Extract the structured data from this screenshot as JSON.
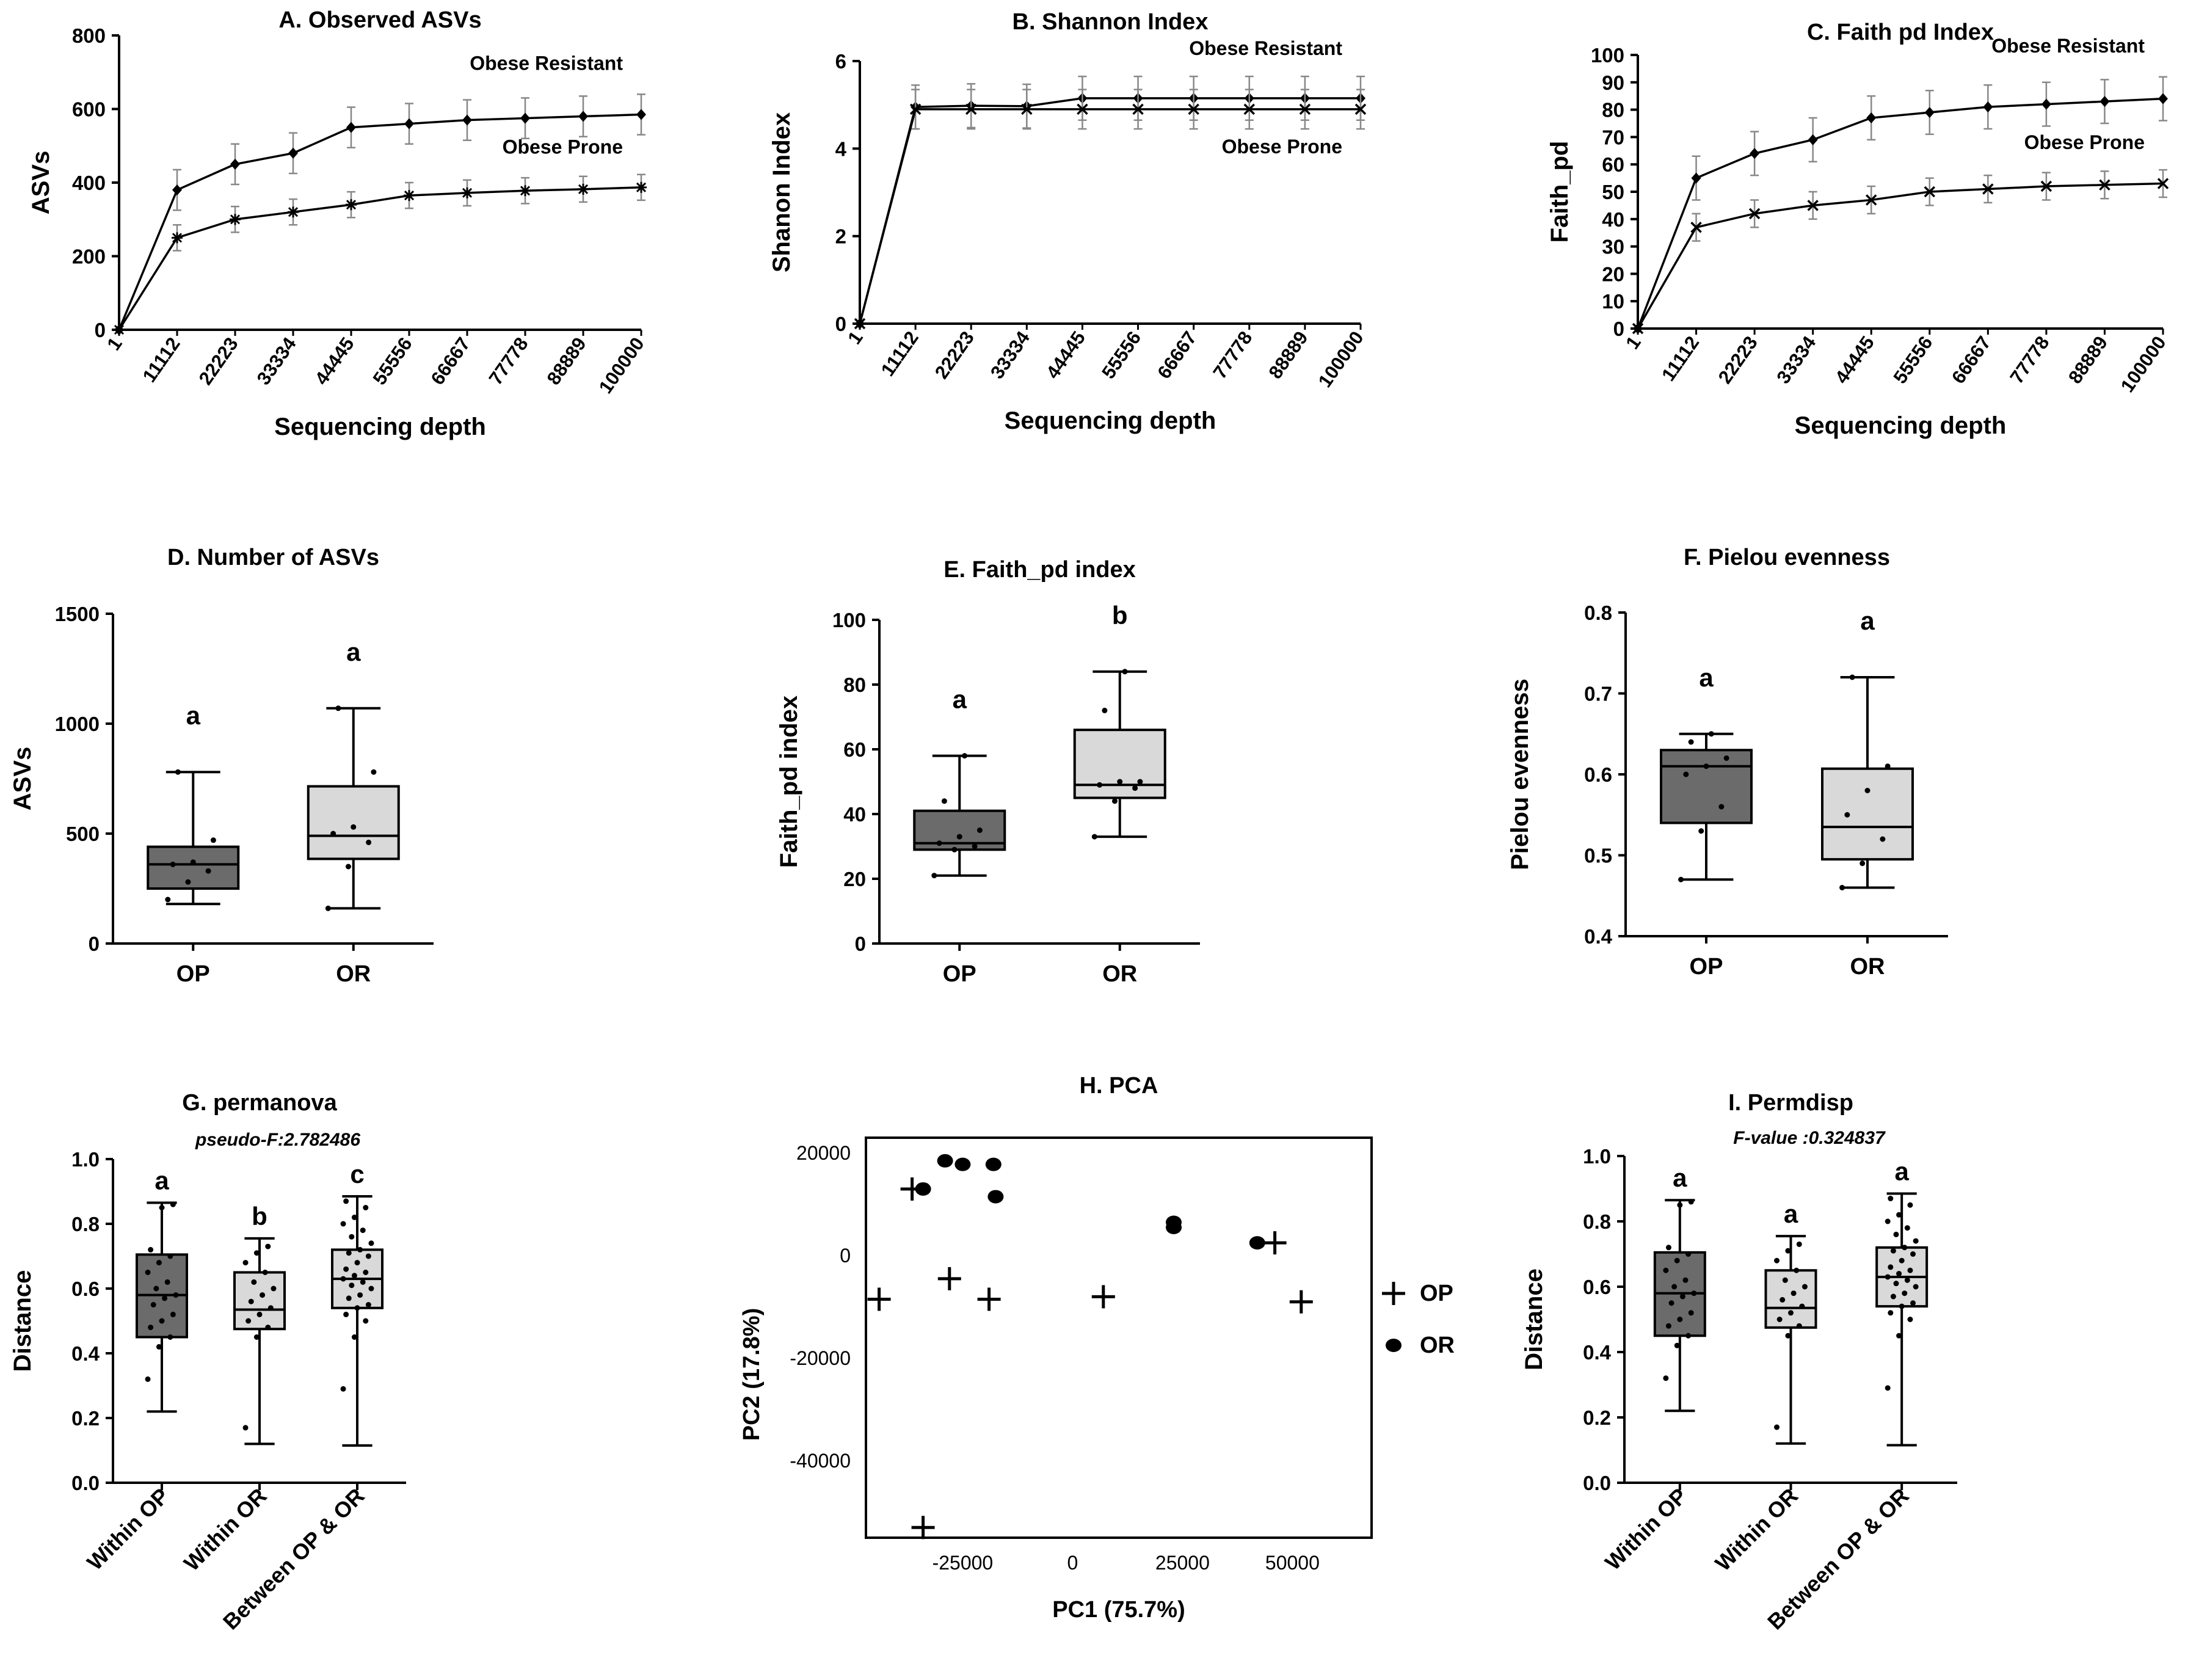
{
  "colors": {
    "box_op": "#6b6b6b",
    "box_or": "#d9d9d9",
    "line": "#000000",
    "errorbar": "#888888"
  },
  "chart_data": [
    {
      "id": "A",
      "type": "line",
      "title": "A. Observed ASVs",
      "xlabel": "Sequencing depth",
      "ylabel": "ASVs",
      "x": [
        "1",
        "11112",
        "22223",
        "33334",
        "44445",
        "55556",
        "66667",
        "77778",
        "88889",
        "100000"
      ],
      "ylim": [
        0,
        800
      ],
      "yticks": [
        "0",
        "200",
        "400",
        "600",
        "800"
      ],
      "series": [
        {
          "name": "Obese Resistant",
          "marker": "diamond",
          "values": [
            0,
            380,
            450,
            480,
            550,
            560,
            570,
            575,
            580,
            585
          ],
          "err": [
            0,
            55,
            55,
            55,
            55,
            55,
            55,
            55,
            55,
            55
          ]
        },
        {
          "name": "Obese Prone",
          "marker": "star",
          "values": [
            0,
            250,
            300,
            320,
            340,
            365,
            372,
            378,
            382,
            387
          ],
          "err": [
            0,
            35,
            35,
            35,
            35,
            35,
            35,
            35,
            35,
            35
          ]
        }
      ]
    },
    {
      "id": "B",
      "type": "line",
      "title": "B. Shannon Index",
      "xlabel": "Sequencing depth",
      "ylabel": "Shanon Index",
      "x": [
        "1",
        "11112",
        "22223",
        "33334",
        "44445",
        "55556",
        "66667",
        "77778",
        "88889",
        "100000"
      ],
      "ylim": [
        0,
        6
      ],
      "yticks": [
        "0",
        "2",
        "4",
        "6"
      ],
      "series": [
        {
          "name": "Obese Resistant",
          "marker": "diamond",
          "values": [
            0,
            4.95,
            4.98,
            4.97,
            5.15,
            5.15,
            5.15,
            5.15,
            5.15,
            5.15
          ],
          "err": [
            0,
            0.5,
            0.5,
            0.5,
            0.5,
            0.5,
            0.5,
            0.5,
            0.5,
            0.5
          ]
        },
        {
          "name": "Obese Prone",
          "marker": "x",
          "values": [
            0,
            4.9,
            4.9,
            4.9,
            4.9,
            4.9,
            4.9,
            4.9,
            4.9,
            4.9
          ],
          "err": [
            0,
            0.45,
            0.45,
            0.45,
            0.45,
            0.45,
            0.45,
            0.45,
            0.45,
            0.45
          ]
        }
      ]
    },
    {
      "id": "C",
      "type": "line",
      "title": "C. Faith pd Index",
      "xlabel": "Sequencing depth",
      "ylabel": "Faith_pd",
      "x": [
        "1",
        "11112",
        "22223",
        "33334",
        "44445",
        "55556",
        "66667",
        "77778",
        "88889",
        "100000"
      ],
      "ylim": [
        0,
        100
      ],
      "yticks": [
        "0",
        "10",
        "20",
        "30",
        "40",
        "50",
        "60",
        "70",
        "80",
        "90",
        "100"
      ],
      "series": [
        {
          "name": "Obese Resistant",
          "marker": "diamond",
          "values": [
            0,
            55,
            64,
            69,
            77,
            79,
            81,
            82,
            83,
            84
          ],
          "err": [
            0,
            8,
            8,
            8,
            8,
            8,
            8,
            8,
            8,
            8
          ]
        },
        {
          "name": "Obese Prone",
          "marker": "x",
          "values": [
            0,
            37,
            42,
            45,
            47,
            50,
            51,
            52,
            52.5,
            53
          ],
          "err": [
            0,
            5,
            5,
            5,
            5,
            5,
            5,
            5,
            5,
            5
          ]
        }
      ]
    },
    {
      "id": "D",
      "type": "box",
      "title": "D. Number of ASVs",
      "ylabel": "ASVs",
      "categories": [
        "OP",
        "OR"
      ],
      "ylim": [
        0,
        1500
      ],
      "yticks": [
        "0",
        "500",
        "1000",
        "1500"
      ],
      "groups": [
        {
          "min": 180,
          "q1": 250,
          "median": 360,
          "q3": 440,
          "max": 780,
          "letter": "a",
          "fill": "op",
          "points": [
            200,
            280,
            330,
            360,
            370,
            470,
            780
          ]
        },
        {
          "min": 160,
          "q1": 385,
          "median": 490,
          "q3": 715,
          "max": 1070,
          "letter": "a",
          "fill": "or",
          "points": [
            160,
            350,
            460,
            500,
            530,
            780,
            1070
          ]
        }
      ]
    },
    {
      "id": "E",
      "type": "box",
      "title": "E. Faith_pd index",
      "ylabel": "Faith_pd index",
      "categories": [
        "OP",
        "OR"
      ],
      "ylim": [
        0,
        100
      ],
      "yticks": [
        "0",
        "20",
        "40",
        "60",
        "80",
        "100"
      ],
      "groups": [
        {
          "min": 21,
          "q1": 29,
          "median": 31,
          "q3": 41,
          "max": 58,
          "letter": "a",
          "fill": "op",
          "points": [
            21,
            29,
            30,
            31,
            33,
            35,
            44,
            58
          ]
        },
        {
          "min": 33,
          "q1": 45,
          "median": 49,
          "q3": 66,
          "max": 84,
          "letter": "b",
          "fill": "or",
          "points": [
            33,
            44,
            48,
            49,
            50,
            50,
            72,
            84
          ]
        }
      ]
    },
    {
      "id": "F",
      "type": "box",
      "title": "F. Pielou evenness",
      "ylabel": "Pielou evenness",
      "categories": [
        "OP",
        "OR"
      ],
      "ylim": [
        0.4,
        0.8
      ],
      "yticks": [
        "0.4",
        "0.5",
        "0.6",
        "0.7",
        "0.8"
      ],
      "groups": [
        {
          "min": 0.47,
          "q1": 0.54,
          "median": 0.61,
          "q3": 0.63,
          "max": 0.65,
          "letter": "a",
          "fill": "op",
          "points": [
            0.47,
            0.53,
            0.56,
            0.6,
            0.61,
            0.62,
            0.64,
            0.65
          ]
        },
        {
          "min": 0.46,
          "q1": 0.495,
          "median": 0.535,
          "q3": 0.607,
          "max": 0.72,
          "letter": "a",
          "fill": "or",
          "points": [
            0.46,
            0.49,
            0.52,
            0.55,
            0.58,
            0.61,
            0.72
          ]
        }
      ]
    },
    {
      "id": "G",
      "type": "box",
      "title": "G. permanova",
      "subtitle": "pseudo-F:2.782486",
      "ylabel": "Distance",
      "categories": [
        "Within OP",
        "Within OR",
        "Between OP & OR"
      ],
      "ylim": [
        0,
        1
      ],
      "yticks": [
        "0.0",
        "0.2",
        "0.4",
        "0.6",
        "0.8",
        "1.0"
      ],
      "groups": [
        {
          "min": 0.22,
          "q1": 0.45,
          "median": 0.58,
          "q3": 0.705,
          "max": 0.865,
          "letter": "a",
          "fill": "op",
          "points": [
            0.32,
            0.42,
            0.45,
            0.48,
            0.5,
            0.52,
            0.55,
            0.57,
            0.58,
            0.6,
            0.62,
            0.65,
            0.68,
            0.7,
            0.72,
            0.85,
            0.86
          ]
        },
        {
          "min": 0.12,
          "q1": 0.475,
          "median": 0.535,
          "q3": 0.65,
          "max": 0.755,
          "letter": "b",
          "fill": "or",
          "points": [
            0.17,
            0.45,
            0.48,
            0.5,
            0.52,
            0.54,
            0.56,
            0.58,
            0.6,
            0.62,
            0.65,
            0.68,
            0.71,
            0.73
          ]
        },
        {
          "min": 0.115,
          "q1": 0.54,
          "median": 0.63,
          "q3": 0.72,
          "max": 0.885,
          "letter": "c",
          "fill": "or",
          "points": [
            0.29,
            0.45,
            0.5,
            0.52,
            0.54,
            0.55,
            0.57,
            0.58,
            0.6,
            0.61,
            0.62,
            0.63,
            0.64,
            0.65,
            0.66,
            0.68,
            0.7,
            0.71,
            0.72,
            0.74,
            0.76,
            0.78,
            0.8,
            0.82,
            0.85,
            0.87
          ]
        }
      ]
    },
    {
      "id": "H",
      "type": "scatter",
      "title": "H. PCA",
      "xlabel": "PC1 (75.7%)",
      "ylabel": "PC2 (17.8%)",
      "xlim": [
        -47000,
        68000
      ],
      "ylim": [
        -55000,
        23000
      ],
      "xticks": [
        "-25000",
        "0",
        "25000",
        "50000"
      ],
      "xtick_values": [
        -25000,
        0,
        25000,
        50000
      ],
      "yticks": [
        "-40000",
        "-20000",
        "0",
        "20000"
      ],
      "ytick_values": [
        -40000,
        -20000,
        0,
        20000
      ],
      "legend": "right",
      "series": [
        {
          "name": "OP",
          "marker": "plus",
          "points": [
            [
              -44000,
              -8500
            ],
            [
              -36500,
              13000
            ],
            [
              -28000,
              -4500
            ],
            [
              -19000,
              -8500
            ],
            [
              7000,
              -8000
            ],
            [
              46000,
              2500
            ],
            [
              52000,
              -9000
            ],
            [
              -34000,
              -53000
            ]
          ]
        },
        {
          "name": "OR",
          "marker": "circle",
          "points": [
            [
              -34000,
              13000
            ],
            [
              -29000,
              18500
            ],
            [
              -25000,
              17800
            ],
            [
              -18000,
              17800
            ],
            [
              -17500,
              11500
            ],
            [
              23000,
              6500
            ],
            [
              23000,
              5500
            ],
            [
              42000,
              2500
            ]
          ]
        }
      ]
    },
    {
      "id": "I",
      "type": "box",
      "title": "I. Permdisp",
      "subtitle": "F-value :0.324837",
      "ylabel": "Distance",
      "categories": [
        "Within OP",
        "Within OR",
        "Between OP & OR"
      ],
      "ylim": [
        0,
        1
      ],
      "yticks": [
        "0.0",
        "0.2",
        "0.4",
        "0.6",
        "0.8",
        "1.0"
      ],
      "groups": [
        {
          "min": 0.22,
          "q1": 0.45,
          "median": 0.58,
          "q3": 0.705,
          "max": 0.865,
          "letter": "a",
          "fill": "op",
          "points": [
            0.32,
            0.42,
            0.45,
            0.48,
            0.5,
            0.52,
            0.55,
            0.57,
            0.58,
            0.6,
            0.62,
            0.65,
            0.68,
            0.7,
            0.72,
            0.85,
            0.86
          ]
        },
        {
          "min": 0.12,
          "q1": 0.475,
          "median": 0.535,
          "q3": 0.65,
          "max": 0.755,
          "letter": "a",
          "fill": "or",
          "points": [
            0.17,
            0.45,
            0.48,
            0.5,
            0.52,
            0.54,
            0.56,
            0.58,
            0.6,
            0.62,
            0.65,
            0.68,
            0.71,
            0.73
          ]
        },
        {
          "min": 0.115,
          "q1": 0.54,
          "median": 0.63,
          "q3": 0.72,
          "max": 0.885,
          "letter": "a",
          "fill": "or",
          "points": [
            0.29,
            0.45,
            0.5,
            0.52,
            0.54,
            0.55,
            0.57,
            0.58,
            0.6,
            0.61,
            0.62,
            0.63,
            0.64,
            0.65,
            0.66,
            0.68,
            0.7,
            0.71,
            0.72,
            0.74,
            0.76,
            0.78,
            0.8,
            0.82,
            0.85,
            0.87
          ]
        }
      ]
    }
  ]
}
